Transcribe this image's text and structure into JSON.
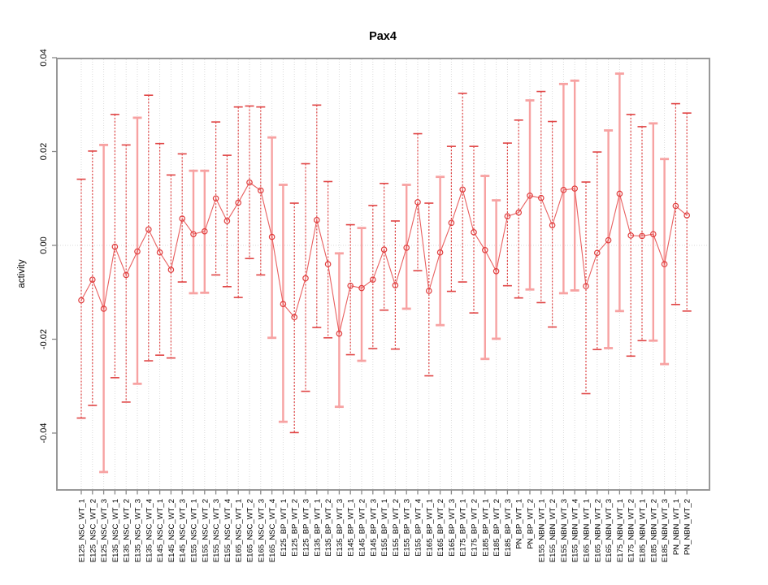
{
  "chart_data": {
    "type": "scatter",
    "title": "Pax4",
    "xlabel": "",
    "ylabel": "activity",
    "ylim": [
      -0.05,
      0.04
    ],
    "yticks": [
      0.04,
      0.02,
      0.0,
      -0.02,
      -0.04
    ],
    "grid": "vertical dotted gridline per category, dotted horizontal line at y=0",
    "legend": "none",
    "error_bars": true,
    "categories": [
      "E125_NSC_WT_1",
      "E125_NSC_WT_2",
      "E125_NSC_WT_3",
      "E135_NSC_WT_1",
      "E135_NSC_WT_2",
      "E135_NSC_WT_3",
      "E135_NSC_WT_4",
      "E145_NSC_WT_1",
      "E145_NSC_WT_2",
      "E145_NSC_WT_3",
      "E155_NSC_WT_1",
      "E155_NSC_WT_2",
      "E155_NSC_WT_3",
      "E155_NSC_WT_4",
      "E165_NSC_WT_1",
      "E165_NSC_WT_2",
      "E165_NSC_WT_3",
      "E165_NSC_WT_4",
      "E125_BP_WT_1",
      "E125_BP_WT_2",
      "E125_BP_WT_3",
      "E135_BP_WT_1",
      "E135_BP_WT_2",
      "E135_BP_WT_3",
      "E145_BP_WT_1",
      "E145_BP_WT_2",
      "E145_BP_WT_3",
      "E155_BP_WT_1",
      "E155_BP_WT_2",
      "E155_BP_WT_3",
      "E155_BP_WT_4",
      "E165_BP_WT_1",
      "E165_BP_WT_2",
      "E165_BP_WT_3",
      "E175_BP_WT_1",
      "E175_BP_WT_2",
      "E185_BP_WT_1",
      "E185_BP_WT_2",
      "E185_BP_WT_3",
      "PN_BP_WT_1",
      "PN_BP_WT_2",
      "E155_NBN_WT_1",
      "E155_NBN_WT_2",
      "E155_NBN_WT_3",
      "E155_NBN_WT_4",
      "E165_NBN_WT_1",
      "E165_NBN_WT_2",
      "E165_NBN_WT_3",
      "E175_NBN_WT_1",
      "E175_NBN_WT_2",
      "E185_NBN_WT_1",
      "E185_NBN_WT_2",
      "E185_NBN_WT_3",
      "PN_NBN_WT_1",
      "PN_NBN_WT_2"
    ],
    "values": [
      -0.0117,
      -0.0073,
      -0.0135,
      -0.0003,
      -0.0063,
      -0.0013,
      0.0034,
      -0.0015,
      -0.0052,
      0.0057,
      0.0024,
      0.003,
      0.01,
      0.0052,
      0.0091,
      0.0134,
      0.0117,
      0.0018,
      -0.0125,
      -0.0153,
      -0.007,
      0.0054,
      -0.004,
      -0.0188,
      -0.0086,
      -0.0091,
      -0.0073,
      -0.0009,
      -0.0085,
      -0.0005,
      0.0092,
      -0.0097,
      -0.0015,
      0.0048,
      0.0119,
      0.0028,
      -0.001,
      -0.0055,
      0.0062,
      0.007,
      0.0106,
      0.0101,
      0.0043,
      0.0118,
      0.0121,
      -0.0087,
      -0.0016,
      0.0011,
      0.011,
      0.0021,
      0.002,
      0.0024,
      -0.004,
      0.0084,
      0.0064
    ],
    "ci_low": [
      -0.0368,
      -0.0341,
      -0.0483,
      -0.0282,
      -0.0334,
      -0.0295,
      -0.0246,
      -0.0234,
      -0.024,
      -0.0078,
      -0.0102,
      -0.0101,
      -0.0063,
      -0.0088,
      -0.0111,
      -0.0028,
      -0.0063,
      -0.0197,
      -0.0376,
      -0.0399,
      -0.0311,
      -0.0175,
      -0.0197,
      -0.0344,
      -0.0233,
      -0.0246,
      -0.022,
      -0.0138,
      -0.0221,
      -0.0135,
      -0.0054,
      -0.0278,
      -0.017,
      -0.0098,
      -0.0078,
      -0.0144,
      -0.0242,
      -0.0199,
      -0.0086,
      -0.0112,
      -0.0094,
      -0.0122,
      -0.0174,
      -0.0102,
      -0.0096,
      -0.0316,
      -0.0222,
      -0.0219,
      -0.014,
      -0.0236,
      -0.0203,
      -0.0203,
      -0.0253,
      -0.0126,
      -0.014
    ],
    "ci_high": [
      0.0141,
      0.0201,
      0.0214,
      0.0279,
      0.0214,
      0.0272,
      0.032,
      0.0217,
      0.015,
      0.0195,
      0.0159,
      0.0159,
      0.0263,
      0.0192,
      0.0295,
      0.0297,
      0.0295,
      0.023,
      0.0129,
      0.009,
      0.0174,
      0.0299,
      0.0136,
      -0.0017,
      0.0044,
      0.0037,
      0.0085,
      0.0132,
      0.0052,
      0.0129,
      0.0238,
      0.009,
      0.0146,
      0.0211,
      0.0324,
      0.0211,
      0.0148,
      0.0096,
      0.0218,
      0.0267,
      0.0309,
      0.0328,
      0.0264,
      0.0344,
      0.0351,
      0.0135,
      0.0199,
      0.0245,
      0.0366,
      0.0279,
      0.0253,
      0.026,
      0.0184,
      0.0302,
      0.0282
    ],
    "pale": [
      0,
      0,
      1,
      0,
      0,
      1,
      0,
      0,
      0,
      0,
      1,
      1,
      0,
      0,
      0,
      0,
      0,
      1,
      1,
      0,
      0,
      0,
      0,
      1,
      0,
      1,
      0,
      0,
      0,
      1,
      0,
      0,
      1,
      0,
      0,
      0,
      1,
      1,
      0,
      0,
      1,
      0,
      0,
      1,
      1,
      0,
      0,
      1,
      1,
      0,
      0,
      1,
      1,
      0,
      0
    ],
    "colors": {
      "point": "#e03c3c",
      "line": "#e86060",
      "bar_dark": "#e04444",
      "bar_pale": "#f7a2a2",
      "grid": "#dadada",
      "frame": "#989898",
      "tick": "#8a8a8a",
      "text": "#000000"
    }
  }
}
